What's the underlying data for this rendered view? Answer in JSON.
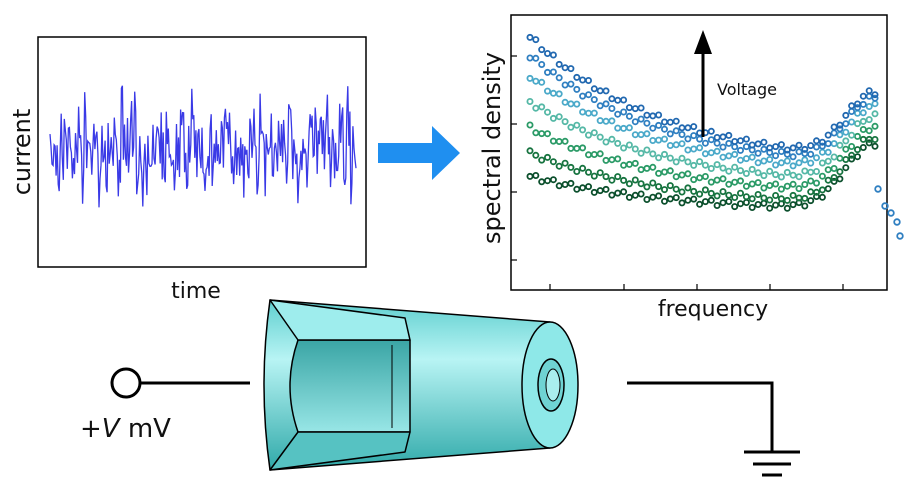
{
  "current_plot": {
    "ylabel": "current",
    "xlabel": "time",
    "trace_color": "#3a3ae6"
  },
  "arrow_color": "#1f8ff0",
  "spectrum_plot": {
    "ylabel": "spectral density",
    "xlabel": "frequency",
    "annotation": "Voltage"
  },
  "circuit": {
    "source_label_prefix": "+",
    "source_label_variable": "V",
    "source_label_unit": " mV"
  },
  "nanopore_color": "#8ee8e8",
  "chart_data": {
    "type": "scatter",
    "xlabel": "frequency",
    "ylabel": "spectral density",
    "legend": "none",
    "annotation": "Voltage (arrow up = increasing)",
    "series": [
      {
        "color": "#0b4f2c",
        "start": 0.35,
        "dip": 0.2
      },
      {
        "color": "#16733f",
        "start": 0.45,
        "dip": 0.22
      },
      {
        "color": "#2a9a66",
        "start": 0.56,
        "dip": 0.26
      },
      {
        "color": "#55b8a6",
        "start": 0.67,
        "dip": 0.3
      },
      {
        "color": "#4aa9c9",
        "start": 0.78,
        "dip": 0.34
      },
      {
        "color": "#2f7fc1",
        "start": 0.87,
        "dip": 0.37
      },
      {
        "color": "#2168b0",
        "start": 0.95,
        "dip": 0.39
      }
    ]
  }
}
